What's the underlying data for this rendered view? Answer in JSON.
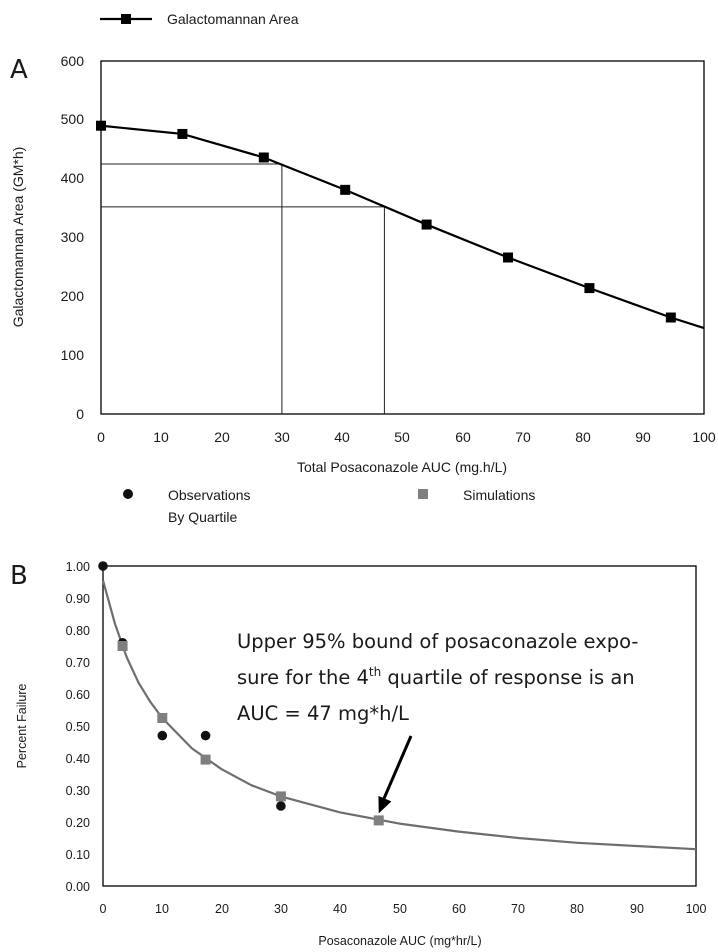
{
  "chart_data": [
    {
      "panel": "A",
      "type": "line",
      "xlabel": "Total Posaconazole AUC (mg.h/L)",
      "ylabel": "Galactomannan Area (GM*h)",
      "xlim": [
        0,
        100
      ],
      "ylim": [
        0,
        600
      ],
      "xticks": [
        "0",
        "10",
        "20",
        "30",
        "40",
        "50",
        "60",
        "70",
        "80",
        "90",
        "100"
      ],
      "yticks": [
        "0",
        "100",
        "200",
        "300",
        "400",
        "500",
        "600"
      ],
      "legend": "top-left",
      "series": [
        {
          "name": "Galactomannan Area",
          "x": [
            0,
            13.5,
            27,
            40.5,
            54,
            67.5,
            81,
            94.5
          ],
          "y": [
            490,
            476,
            436,
            381,
            322,
            266,
            214,
            164
          ],
          "line_end": [
            100,
            146
          ]
        }
      ],
      "reference_lines": [
        {
          "x": 30,
          "y": 425
        },
        {
          "x": 47,
          "y": 352
        }
      ]
    },
    {
      "panel": "B",
      "type": "scatter",
      "xlabel": "Posaconazole AUC (mg*hr/L)",
      "ylabel": "Percent Failure",
      "xlim": [
        0,
        100
      ],
      "ylim": [
        0,
        1
      ],
      "xticks": [
        "0",
        "10",
        "20",
        "30",
        "40",
        "50",
        "60",
        "70",
        "80",
        "90",
        "100"
      ],
      "yticks": [
        "0.00",
        "0.10",
        "0.20",
        "0.30",
        "0.40",
        "0.50",
        "0.60",
        "0.70",
        "0.80",
        "0.90",
        "1.00"
      ],
      "legend": "top",
      "series": [
        {
          "name": "Observations\nBy Quartile",
          "x": [
            0,
            3.3,
            10,
            17.3,
            30
          ],
          "y": [
            1.0,
            0.76,
            0.47,
            0.47,
            0.25
          ]
        },
        {
          "name": "Simulations",
          "x": [
            3.3,
            10,
            17.3,
            30,
            46.5
          ],
          "y": [
            0.75,
            0.525,
            0.395,
            0.28,
            0.205
          ]
        }
      ],
      "fit_curve": {
        "x": [
          0,
          2,
          4,
          6,
          8,
          10,
          15,
          20,
          25,
          30,
          40,
          50,
          60,
          70,
          80,
          90,
          100
        ],
        "y": [
          0.955,
          0.82,
          0.715,
          0.635,
          0.575,
          0.525,
          0.43,
          0.365,
          0.315,
          0.28,
          0.23,
          0.195,
          0.17,
          0.15,
          0.135,
          0.125,
          0.115
        ]
      },
      "annotation": {
        "lines": [
          "Upper 95% bound of posaconazole expo-",
          "sure for the 4",
          "th",
          " quartile of response is an",
          "AUC = 47 mg*h/L"
        ],
        "target": {
          "x": 46.5,
          "y": 0.205
        }
      }
    }
  ],
  "panel_labels": {
    "a": "A",
    "b": "B"
  },
  "colors": {
    "series_a": "#000000",
    "observations": "#111111",
    "simulations": "#7f7f7f",
    "fit_curve": "#6e6e6e"
  }
}
